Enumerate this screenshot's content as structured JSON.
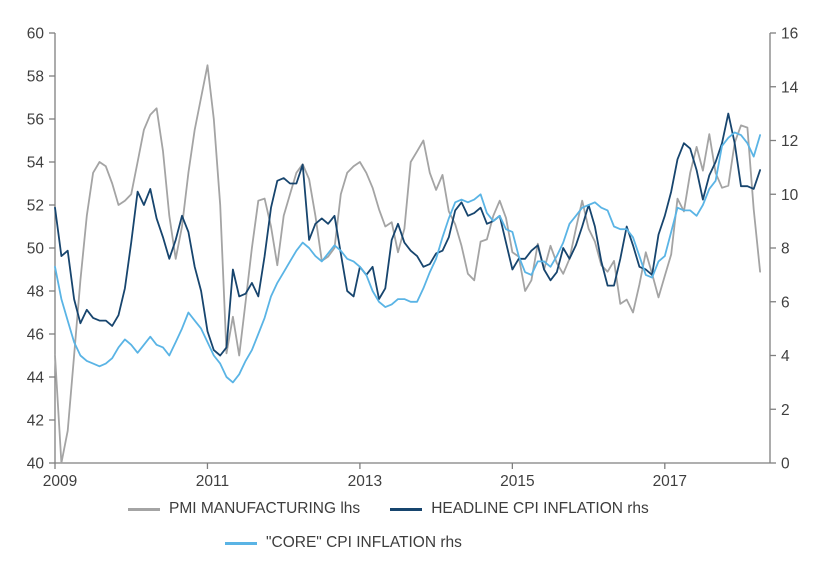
{
  "chart_data": {
    "type": "line",
    "title": "",
    "x_axis": {
      "min": 2009,
      "max": 2018.38,
      "ticks": [
        2009,
        2011,
        2013,
        2015,
        2017
      ],
      "frequency": "monthly",
      "start": "2009-01"
    },
    "left_axis": {
      "min": 40,
      "max": 60,
      "ticks": [
        40,
        42,
        44,
        46,
        48,
        50,
        52,
        54,
        56,
        58,
        60
      ]
    },
    "right_axis": {
      "min": 0,
      "max": 16,
      "ticks": [
        0,
        2,
        4,
        6,
        8,
        10,
        12,
        14,
        16
      ]
    },
    "grid": false,
    "legend_position": "bottom",
    "series": [
      {
        "id": "pmi-manufacturing",
        "name": "PMI MANUFACTURING lhs",
        "axis": "left",
        "color": "#a4a4a4",
        "values": [
          45.0,
          40.0,
          41.5,
          45.0,
          48.5,
          51.5,
          53.5,
          54.0,
          53.8,
          53.0,
          52.0,
          52.2,
          52.5,
          54.0,
          55.5,
          56.2,
          56.5,
          54.5,
          51.5,
          49.5,
          51.0,
          53.5,
          55.5,
          57.0,
          58.5,
          56.0,
          52.0,
          45.1,
          46.8,
          45.0,
          47.5,
          50.0,
          52.2,
          52.3,
          51.0,
          49.2,
          51.5,
          52.5,
          53.5,
          53.9,
          53.2,
          51.5,
          49.4,
          49.6,
          50.0,
          52.5,
          53.5,
          53.8,
          54.0,
          53.5,
          52.8,
          51.8,
          51.0,
          51.2,
          49.8,
          50.9,
          54.0,
          54.5,
          55.0,
          53.5,
          52.7,
          53.4,
          51.7,
          51.1,
          50.1,
          48.8,
          48.5,
          50.3,
          50.4,
          51.5,
          52.2,
          51.4,
          49.8,
          49.6,
          48.0,
          48.5,
          50.2,
          49.0,
          50.1,
          49.3,
          48.8,
          49.5,
          50.9,
          52.2,
          50.9,
          50.3,
          49.2,
          48.9,
          49.4,
          47.4,
          47.6,
          47.0,
          48.3,
          49.8,
          48.8,
          47.7,
          48.7,
          49.7,
          52.3,
          51.7,
          53.5,
          54.7,
          53.6,
          55.3,
          53.5,
          52.8,
          52.9,
          54.9,
          55.7,
          55.6,
          51.8,
          48.9
        ]
      },
      {
        "id": "headline-cpi",
        "name": "HEADLINE CPI INFLATION rhs",
        "axis": "right",
        "color": "#17456e",
        "values": [
          9.5,
          7.7,
          7.9,
          6.1,
          5.2,
          5.7,
          5.4,
          5.3,
          5.3,
          5.1,
          5.5,
          6.5,
          8.2,
          10.1,
          9.6,
          10.2,
          9.1,
          8.4,
          7.6,
          8.3,
          9.2,
          8.6,
          7.3,
          6.4,
          4.9,
          4.2,
          4.0,
          4.3,
          7.2,
          6.2,
          6.3,
          6.7,
          6.2,
          7.7,
          9.5,
          10.5,
          10.6,
          10.4,
          10.4,
          11.1,
          8.3,
          8.9,
          9.1,
          8.9,
          9.2,
          7.8,
          6.4,
          6.2,
          7.3,
          7.0,
          7.3,
          6.1,
          6.5,
          8.3,
          8.9,
          8.2,
          7.9,
          7.7,
          7.3,
          7.4,
          7.8,
          7.9,
          8.4,
          9.4,
          9.7,
          9.2,
          9.3,
          9.5,
          8.9,
          9.0,
          9.2,
          8.2,
          7.2,
          7.6,
          7.6,
          7.9,
          8.1,
          7.2,
          6.8,
          7.1,
          8.0,
          7.6,
          8.1,
          8.8,
          9.6,
          8.8,
          7.5,
          6.6,
          6.6,
          7.6,
          8.8,
          8.1,
          7.3,
          7.2,
          7.0,
          8.5,
          9.2,
          10.1,
          11.3,
          11.9,
          11.7,
          10.9,
          9.8,
          10.7,
          11.2,
          11.9,
          13.0,
          11.9,
          10.3,
          10.3,
          10.2,
          10.9
        ]
      },
      {
        "id": "core-cpi",
        "name": "\"CORE\" CPI INFLATION rhs",
        "axis": "right",
        "color": "#5ab4e5",
        "values": [
          7.3,
          6.1,
          5.3,
          4.5,
          4.0,
          3.8,
          3.7,
          3.6,
          3.7,
          3.9,
          4.3,
          4.6,
          4.4,
          4.1,
          4.4,
          4.7,
          4.4,
          4.3,
          4.0,
          4.5,
          5.0,
          5.6,
          5.3,
          5.0,
          4.5,
          4.0,
          3.7,
          3.2,
          3.0,
          3.3,
          3.8,
          4.2,
          4.8,
          5.4,
          6.2,
          6.7,
          7.1,
          7.5,
          7.9,
          8.2,
          8.0,
          7.7,
          7.5,
          7.8,
          8.1,
          7.9,
          7.6,
          7.5,
          7.3,
          7.0,
          6.4,
          6.0,
          5.8,
          5.9,
          6.1,
          6.1,
          6.0,
          6.0,
          6.5,
          7.1,
          7.6,
          8.4,
          9.1,
          9.7,
          9.8,
          9.7,
          9.8,
          10.0,
          9.3,
          9.0,
          9.2,
          8.7,
          8.6,
          7.7,
          7.1,
          7.0,
          7.5,
          7.5,
          7.3,
          7.7,
          8.2,
          8.9,
          9.2,
          9.5,
          9.6,
          9.7,
          9.5,
          9.4,
          8.8,
          8.7,
          8.7,
          8.4,
          7.7,
          7.0,
          6.9,
          7.5,
          7.7,
          8.6,
          9.5,
          9.4,
          9.4,
          9.2,
          9.6,
          10.2,
          10.5,
          11.8,
          12.1,
          12.3,
          12.2,
          11.9,
          11.4,
          12.2
        ]
      }
    ]
  }
}
